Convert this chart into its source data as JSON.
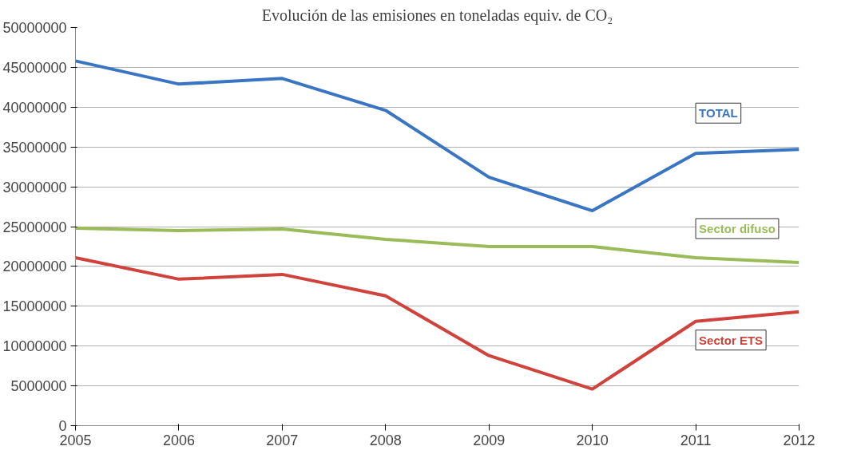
{
  "chart_data": {
    "type": "line",
    "title": "Evolución de las emisiones en toneladas equiv. de CO₂",
    "categories": [
      "2005",
      "2006",
      "2007",
      "2008",
      "2009",
      "2010",
      "2011",
      "2012"
    ],
    "series": [
      {
        "name": "TOTAL",
        "color": "#3a75c4",
        "values": [
          45800000,
          42900000,
          43600000,
          39600000,
          31200000,
          27000000,
          34200000,
          34700000
        ]
      },
      {
        "name": "Sector difuso",
        "color": "#9bbb59",
        "values": [
          24800000,
          24500000,
          24700000,
          23400000,
          22500000,
          22500000,
          21100000,
          20500000
        ]
      },
      {
        "name": "Sector ETS",
        "color": "#d0433c",
        "values": [
          21100000,
          18400000,
          19000000,
          16300000,
          8800000,
          4600000,
          13100000,
          14300000
        ]
      }
    ],
    "ylim": [
      0,
      50000000
    ],
    "yticks": [
      0,
      5000000,
      10000000,
      15000000,
      20000000,
      25000000,
      30000000,
      35000000,
      40000000,
      45000000,
      50000000
    ],
    "grid": "y",
    "legend": false,
    "marker": "none",
    "line_style": "solid"
  }
}
